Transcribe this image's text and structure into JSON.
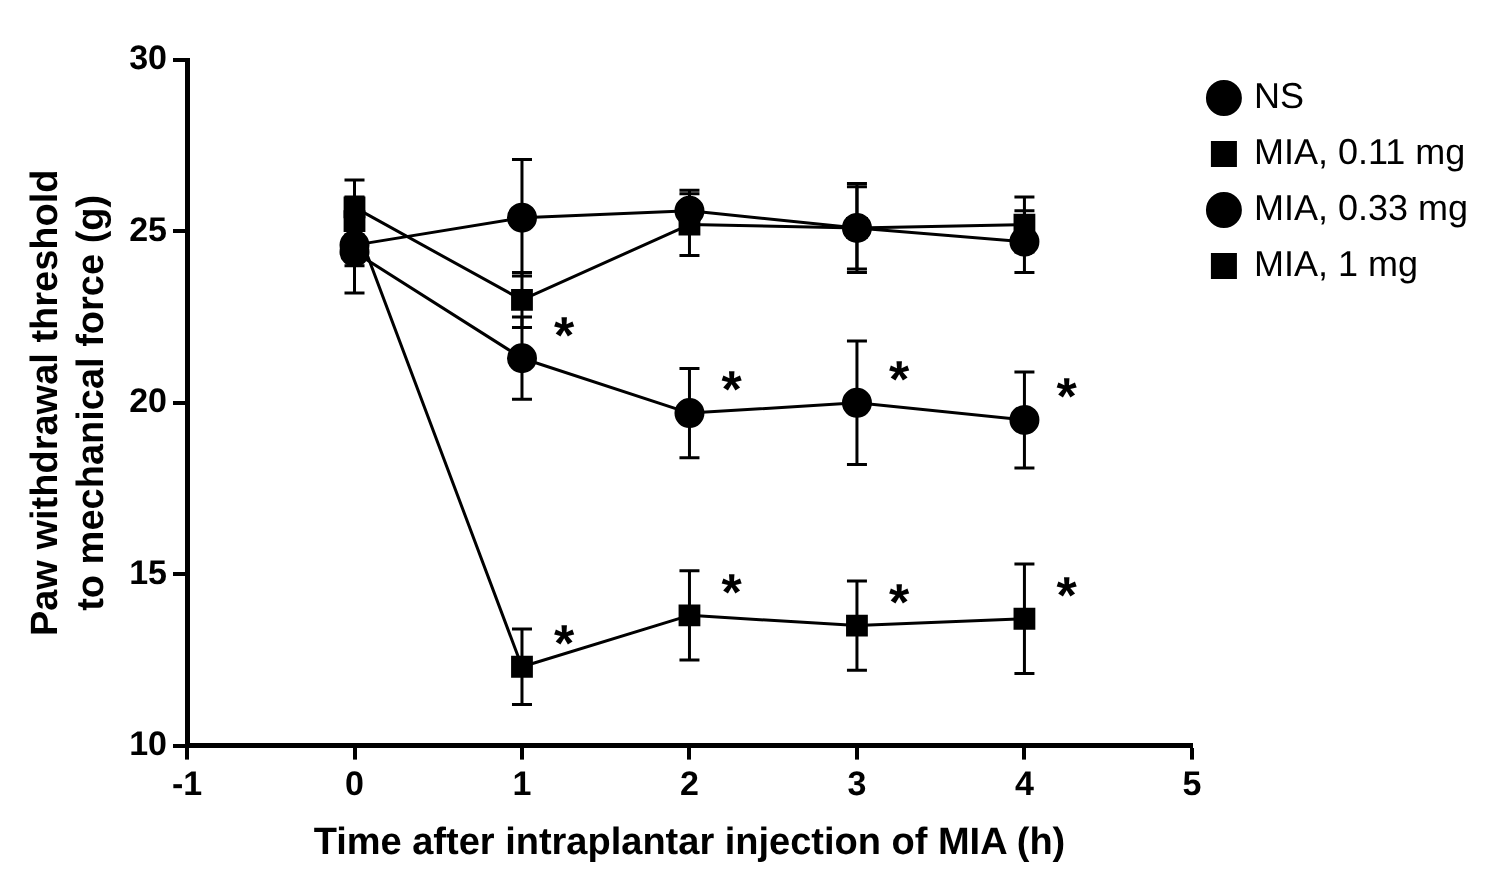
{
  "chart_data": {
    "type": "line",
    "xlabel": "Time after intraplantar injection of MIA (h)",
    "ylabel": "Paw withdrawal threshold\nto mechanical force (g)",
    "x": [
      0,
      1,
      2,
      3,
      4
    ],
    "xlim": [
      -1,
      5
    ],
    "xticks": [
      -1,
      0,
      1,
      2,
      3,
      4,
      5
    ],
    "ylim": [
      10,
      30
    ],
    "yticks": [
      10,
      15,
      20,
      25,
      30
    ],
    "grid": false,
    "legend": "top right",
    "line_style": "solid",
    "series": [
      {
        "name": "NS",
        "color": "#000000",
        "marker": "circle",
        "values": [
          24.6,
          25.4,
          25.6,
          25.1,
          24.7
        ],
        "errors": [
          1.4,
          1.7,
          0.6,
          1.3,
          0.9
        ]
      },
      {
        "name": "MIA, 0.11 mg",
        "color": "#000000",
        "marker": "square",
        "values": [
          25.7,
          23.0,
          25.2,
          25.1,
          25.2
        ],
        "errors": [
          0.8,
          0.8,
          0.9,
          1.2,
          0.8
        ]
      },
      {
        "name": "MIA, 0.33 mg",
        "color": "#000000",
        "marker": "circle",
        "values": [
          24.4,
          21.3,
          19.7,
          20.0,
          19.5
        ],
        "errors": [
          0.4,
          1.2,
          1.3,
          1.8,
          1.4
        ]
      },
      {
        "name": "MIA, 1 mg",
        "color": "#000000",
        "marker": "square",
        "values": [
          25.3,
          12.3,
          13.8,
          13.5,
          13.7
        ],
        "errors": [
          0.5,
          1.1,
          1.3,
          1.3,
          1.6
        ]
      }
    ],
    "annotations": [
      {
        "text": "*",
        "x": 1,
        "y": 21.3
      },
      {
        "text": "*",
        "x": 2,
        "y": 19.7
      },
      {
        "text": "*",
        "x": 3,
        "y": 20.0
      },
      {
        "text": "*",
        "x": 4,
        "y": 19.5
      },
      {
        "text": "*",
        "x": 1,
        "y": 12.3
      },
      {
        "text": "*",
        "x": 2,
        "y": 13.8
      },
      {
        "text": "*",
        "x": 3,
        "y": 13.5
      },
      {
        "text": "*",
        "x": 4,
        "y": 13.7
      }
    ]
  }
}
